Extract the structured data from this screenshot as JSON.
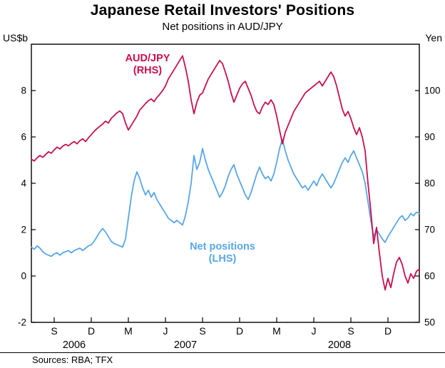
{
  "title": "Japanese Retail Investors' Positions",
  "subtitle": "Net positions in AUD/JPY",
  "source_note": "Sources: RBA; TFX",
  "chart_data": {
    "type": "line",
    "title": "Japanese Retail Investors' Positions",
    "subtitle": "Net positions in AUD/JPY",
    "frequency": "weekly",
    "x_axis": {
      "range_weeks": [
        0,
        136
      ],
      "tick_weeks": [
        8,
        21,
        34,
        47,
        60,
        73,
        86,
        99,
        112,
        125
      ],
      "tick_labels": [
        "S",
        "D",
        "M",
        "J",
        "S",
        "D",
        "M",
        "J",
        "S",
        "D"
      ],
      "year_labels": [
        {
          "text": "2006",
          "week": 15
        },
        {
          "text": "2007",
          "week": 54
        },
        {
          "text": "2008",
          "week": 108
        }
      ]
    },
    "left_axis": {
      "unit": "US$b",
      "ticks": [
        -2,
        0,
        2,
        4,
        6,
        8
      ],
      "range": [
        -2,
        10
      ]
    },
    "right_axis": {
      "unit": "Yen",
      "ticks": [
        50,
        60,
        70,
        80,
        90,
        100
      ],
      "range": [
        50,
        110
      ]
    },
    "grid": false,
    "series": [
      {
        "name": "AUD/JPY",
        "axis": "RHS",
        "color": "#C8104E",
        "label_line1": "AUD/JPY",
        "label_line2": "(RHS)",
        "values": [
          85.2,
          84.8,
          85.5,
          86.0,
          85.6,
          86.2,
          86.8,
          86.5,
          87.2,
          87.8,
          87.4,
          88.0,
          88.4,
          88.1,
          88.6,
          89.0,
          88.5,
          89.2,
          89.6,
          89.0,
          89.8,
          90.5,
          91.2,
          91.8,
          92.3,
          92.8,
          93.4,
          93.0,
          94.0,
          94.6,
          95.2,
          95.6,
          95.0,
          93.0,
          91.5,
          92.5,
          93.5,
          94.5,
          95.8,
          96.5,
          97.2,
          97.8,
          98.2,
          97.6,
          98.5,
          99.2,
          100.0,
          101.0,
          102.5,
          103.5,
          104.5,
          105.5,
          106.5,
          107.5,
          105.0,
          102.0,
          98.0,
          95.0,
          97.5,
          99.0,
          99.5,
          101.0,
          102.5,
          103.5,
          104.5,
          105.5,
          106.5,
          105.8,
          104.0,
          102.0,
          99.5,
          97.5,
          99.0,
          100.5,
          101.5,
          102.0,
          100.5,
          99.0,
          97.0,
          95.5,
          95.0,
          96.5,
          97.5,
          97.0,
          98.0,
          97.0,
          94.5,
          91.5,
          88.5,
          91.0,
          92.5,
          94.0,
          95.5,
          96.5,
          97.5,
          98.5,
          99.5,
          100.0,
          100.5,
          101.0,
          101.5,
          102.0,
          101.0,
          102.0,
          103.0,
          104.0,
          103.0,
          101.0,
          98.5,
          96.0,
          94.5,
          95.5,
          94.0,
          92.0,
          90.5,
          92.0,
          90.0,
          87.0,
          80.0,
          74.0,
          67.0,
          70.5,
          65.0,
          60.0,
          57.0,
          59.5,
          57.5,
          60.5,
          63.0,
          64.0,
          62.5,
          60.0,
          58.5,
          60.5,
          59.5,
          61.0,
          61.5
        ]
      },
      {
        "name": "Net positions",
        "axis": "LHS",
        "color": "#58A6E8",
        "label_line1": "Net positions",
        "label_line2": "(LHS)",
        "values": [
          1.25,
          1.15,
          1.3,
          1.2,
          1.05,
          0.95,
          0.9,
          0.85,
          0.95,
          1.0,
          0.9,
          1.0,
          1.05,
          1.1,
          1.0,
          1.1,
          1.15,
          1.2,
          1.1,
          1.2,
          1.3,
          1.35,
          1.5,
          1.7,
          1.9,
          2.05,
          1.9,
          1.7,
          1.5,
          1.4,
          1.35,
          1.3,
          1.25,
          1.6,
          2.5,
          3.4,
          4.1,
          4.5,
          4.2,
          3.8,
          3.5,
          3.7,
          3.4,
          3.6,
          3.3,
          3.1,
          2.9,
          2.7,
          2.5,
          2.4,
          2.3,
          2.4,
          2.3,
          2.2,
          2.6,
          3.2,
          4.0,
          5.2,
          4.6,
          4.9,
          5.5,
          5.0,
          4.6,
          4.3,
          4.0,
          3.7,
          3.4,
          3.6,
          3.9,
          4.3,
          4.6,
          4.8,
          4.4,
          4.1,
          3.8,
          3.5,
          3.3,
          3.6,
          4.0,
          4.4,
          4.7,
          4.4,
          4.2,
          4.3,
          4.1,
          4.4,
          4.9,
          5.5,
          5.9,
          5.4,
          5.0,
          4.7,
          4.4,
          4.2,
          4.0,
          3.8,
          3.9,
          3.7,
          3.9,
          4.1,
          3.9,
          4.2,
          4.4,
          4.2,
          4.0,
          3.8,
          4.0,
          4.3,
          4.6,
          4.9,
          5.1,
          4.9,
          5.2,
          5.4,
          5.1,
          4.8,
          4.5,
          4.0,
          3.2,
          2.4,
          1.7,
          2.0,
          1.8,
          1.6,
          1.45,
          1.7,
          1.9,
          2.1,
          2.3,
          2.5,
          2.6,
          2.4,
          2.5,
          2.7,
          2.6,
          2.75,
          2.7
        ]
      }
    ]
  }
}
